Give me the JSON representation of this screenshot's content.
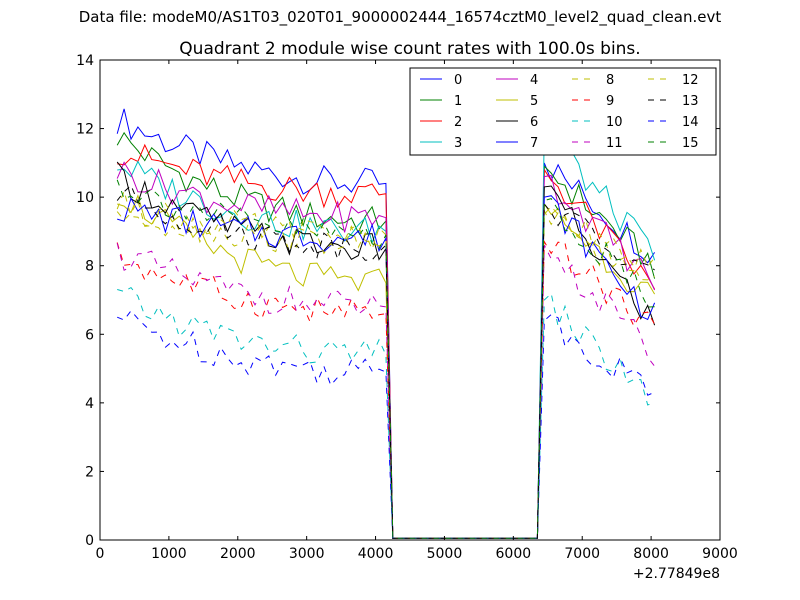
{
  "figure": {
    "suptitle": "Data file: modeM0/AS1T03_020T01_9000002444_16574cztM0_level2_quad_clean.evt"
  },
  "chart_data": {
    "type": "line",
    "title": "Quadrant 2 module wise count rates with 100.0s bins.",
    "xlabel": "",
    "ylabel": "",
    "x_offset_label": "+2.77849e8",
    "xlim": [
      0,
      9000
    ],
    "ylim": [
      0,
      14
    ],
    "x_ticks": [
      "0",
      "1000",
      "2000",
      "3000",
      "4000",
      "5000",
      "6000",
      "7000",
      "8000",
      "9000"
    ],
    "y_ticks": [
      "0",
      "2",
      "4",
      "6",
      "8",
      "10",
      "12",
      "14"
    ],
    "grid": false,
    "legend_position": "top-right",
    "legend_columns": 4,
    "gap": {
      "start": 4150,
      "end": 6350
    },
    "x_first_segment": [
      250,
      350,
      450,
      550,
      650,
      750,
      850,
      950,
      1050,
      1150,
      1250,
      1350,
      1450,
      1550,
      1650,
      1750,
      1850,
      1950,
      2050,
      2150,
      2250,
      2350,
      2450,
      2550,
      2650,
      2750,
      2850,
      2950,
      3050,
      3150,
      3250,
      3350,
      3450,
      3550,
      3650,
      3750,
      3850,
      3950,
      4050,
      4150
    ],
    "x_gap_points": [
      4250,
      4350,
      4450,
      4550,
      4650,
      4750,
      4850,
      4950,
      5050,
      5150,
      5250,
      5350,
      5450,
      5550,
      5650,
      5750,
      5850,
      5950,
      6050,
      6150,
      6250,
      6350
    ],
    "x_second_segment": [
      6450,
      6550,
      6650,
      6750,
      6850,
      6950,
      7050,
      7150,
      7250,
      7350,
      7450,
      7550,
      7650,
      7750,
      7850,
      7950,
      8050
    ],
    "series": [
      {
        "name": "0",
        "color": "#0000ff",
        "dash": false,
        "start": 12.3,
        "end": 10.4,
        "start2": 11.0,
        "end2": 8.3
      },
      {
        "name": "1",
        "color": "#008000",
        "dash": false,
        "start": 11.8,
        "end": 9.3,
        "start2": 10.9,
        "end2": 8.0
      },
      {
        "name": "2",
        "color": "#ff0000",
        "dash": false,
        "start": 11.4,
        "end": 10.1,
        "start2": 10.8,
        "end2": 7.3
      },
      {
        "name": "3",
        "color": "#00bfbf",
        "dash": false,
        "start": 11.0,
        "end": 9.0,
        "start2": 11.9,
        "end2": 8.3
      },
      {
        "name": "4",
        "color": "#bf00bf",
        "dash": false,
        "start": 10.8,
        "end": 9.4,
        "start2": 10.6,
        "end2": 7.5
      },
      {
        "name": "5",
        "color": "#bfbf00",
        "dash": false,
        "start": 10.2,
        "end": 7.5,
        "start2": 9.8,
        "end2": 7.0
      },
      {
        "name": "6",
        "color": "#000000",
        "dash": false,
        "start": 10.6,
        "end": 8.5,
        "start2": 10.3,
        "end2": 6.3
      },
      {
        "name": "7",
        "color": "#0000ff",
        "dash": false,
        "start": 9.7,
        "end": 8.8,
        "start2": 10.0,
        "end2": 6.5
      },
      {
        "name": "8",
        "color": "#bfbf00",
        "dash": true,
        "start": 9.8,
        "end": 8.9,
        "start2": 9.5,
        "end2": 7.4
      },
      {
        "name": "9",
        "color": "#ff0000",
        "dash": true,
        "start": 8.3,
        "end": 6.6,
        "start2": 8.7,
        "end2": 6.2
      },
      {
        "name": "10",
        "color": "#00bfbf",
        "dash": true,
        "start": 7.1,
        "end": 5.4,
        "start2": 7.0,
        "end2": 4.0
      },
      {
        "name": "11",
        "color": "#bf00bf",
        "dash": true,
        "start": 8.4,
        "end": 6.8,
        "start2": 8.6,
        "end2": 5.4
      },
      {
        "name": "12",
        "color": "#bfbf00",
        "dash": true,
        "start": 9.6,
        "end": 8.7,
        "start2": 9.6,
        "end2": 7.8
      },
      {
        "name": "13",
        "color": "#000000",
        "dash": true,
        "start": 10.1,
        "end": 8.6,
        "start2": 9.8,
        "end2": 7.6
      },
      {
        "name": "14",
        "color": "#0000ff",
        "dash": true,
        "start": 6.5,
        "end": 4.9,
        "start2": 6.4,
        "end2": 4.3
      },
      {
        "name": "15",
        "color": "#008000",
        "dash": true,
        "start": 10.4,
        "end": 8.9,
        "start2": 9.9,
        "end2": 7.0
      }
    ]
  }
}
